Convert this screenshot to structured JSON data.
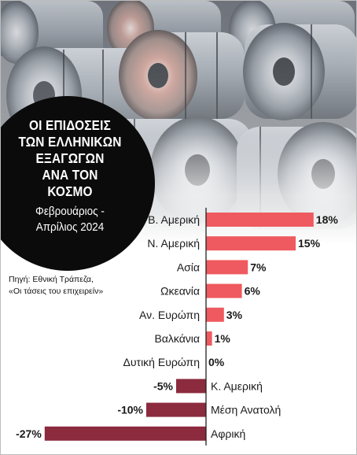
{
  "title_lines": [
    "ΟΙ ΕΠΙΔΟΣΕΙΣ",
    "ΤΩΝ ΕΛΛΗΝΙΚΩΝ",
    "ΕΞΑΓΩΓΩΝ",
    "ΑΝΑ ΤΟΝ",
    "ΚΟΣΜΟ"
  ],
  "subtitle_lines": [
    "Φεβρουάριος -",
    "Απρίλιος 2024"
  ],
  "source_lines": [
    "Πηγή: Εθνική Τράπεζα,",
    "«Οι τάσεις του επιχειρείν»"
  ],
  "colors": {
    "positive_bar": "#ee5a5f",
    "negative_bar": "#8c2a3e",
    "badge": "#0b0b0b",
    "axis": "#222222"
  },
  "chart_data": {
    "type": "bar",
    "orientation": "horizontal",
    "categories": [
      "Β. Αμερική",
      "Ν. Αμερική",
      "Ασία",
      "Ωκεανία",
      "Αν. Ευρώπη",
      "Βαλκάνια",
      "Δυτική Ευρώπη",
      "Κ. Αμερική",
      "Μέση Ανατολή",
      "Αφρική"
    ],
    "values": [
      18,
      15,
      7,
      6,
      3,
      1,
      0,
      -5,
      -10,
      -27
    ],
    "value_labels": [
      "18%",
      "15%",
      "7%",
      "6%",
      "3%",
      "1%",
      "0%",
      "-5%",
      "-10%",
      "-27%"
    ],
    "unit": "%",
    "xlim": [
      -27,
      18
    ],
    "grid": false,
    "legend": "none",
    "title": "ΟΙ ΕΠΙΔΟΣΕΙΣ ΤΩΝ ΕΛΛΗΝΙΚΩΝ ΕΞΑΓΩΓΩΝ ΑΝΑ ΤΟΝ ΚΟΣΜΟ",
    "subtitle": "Φεβρουάριος - Απρίλιος 2024"
  }
}
